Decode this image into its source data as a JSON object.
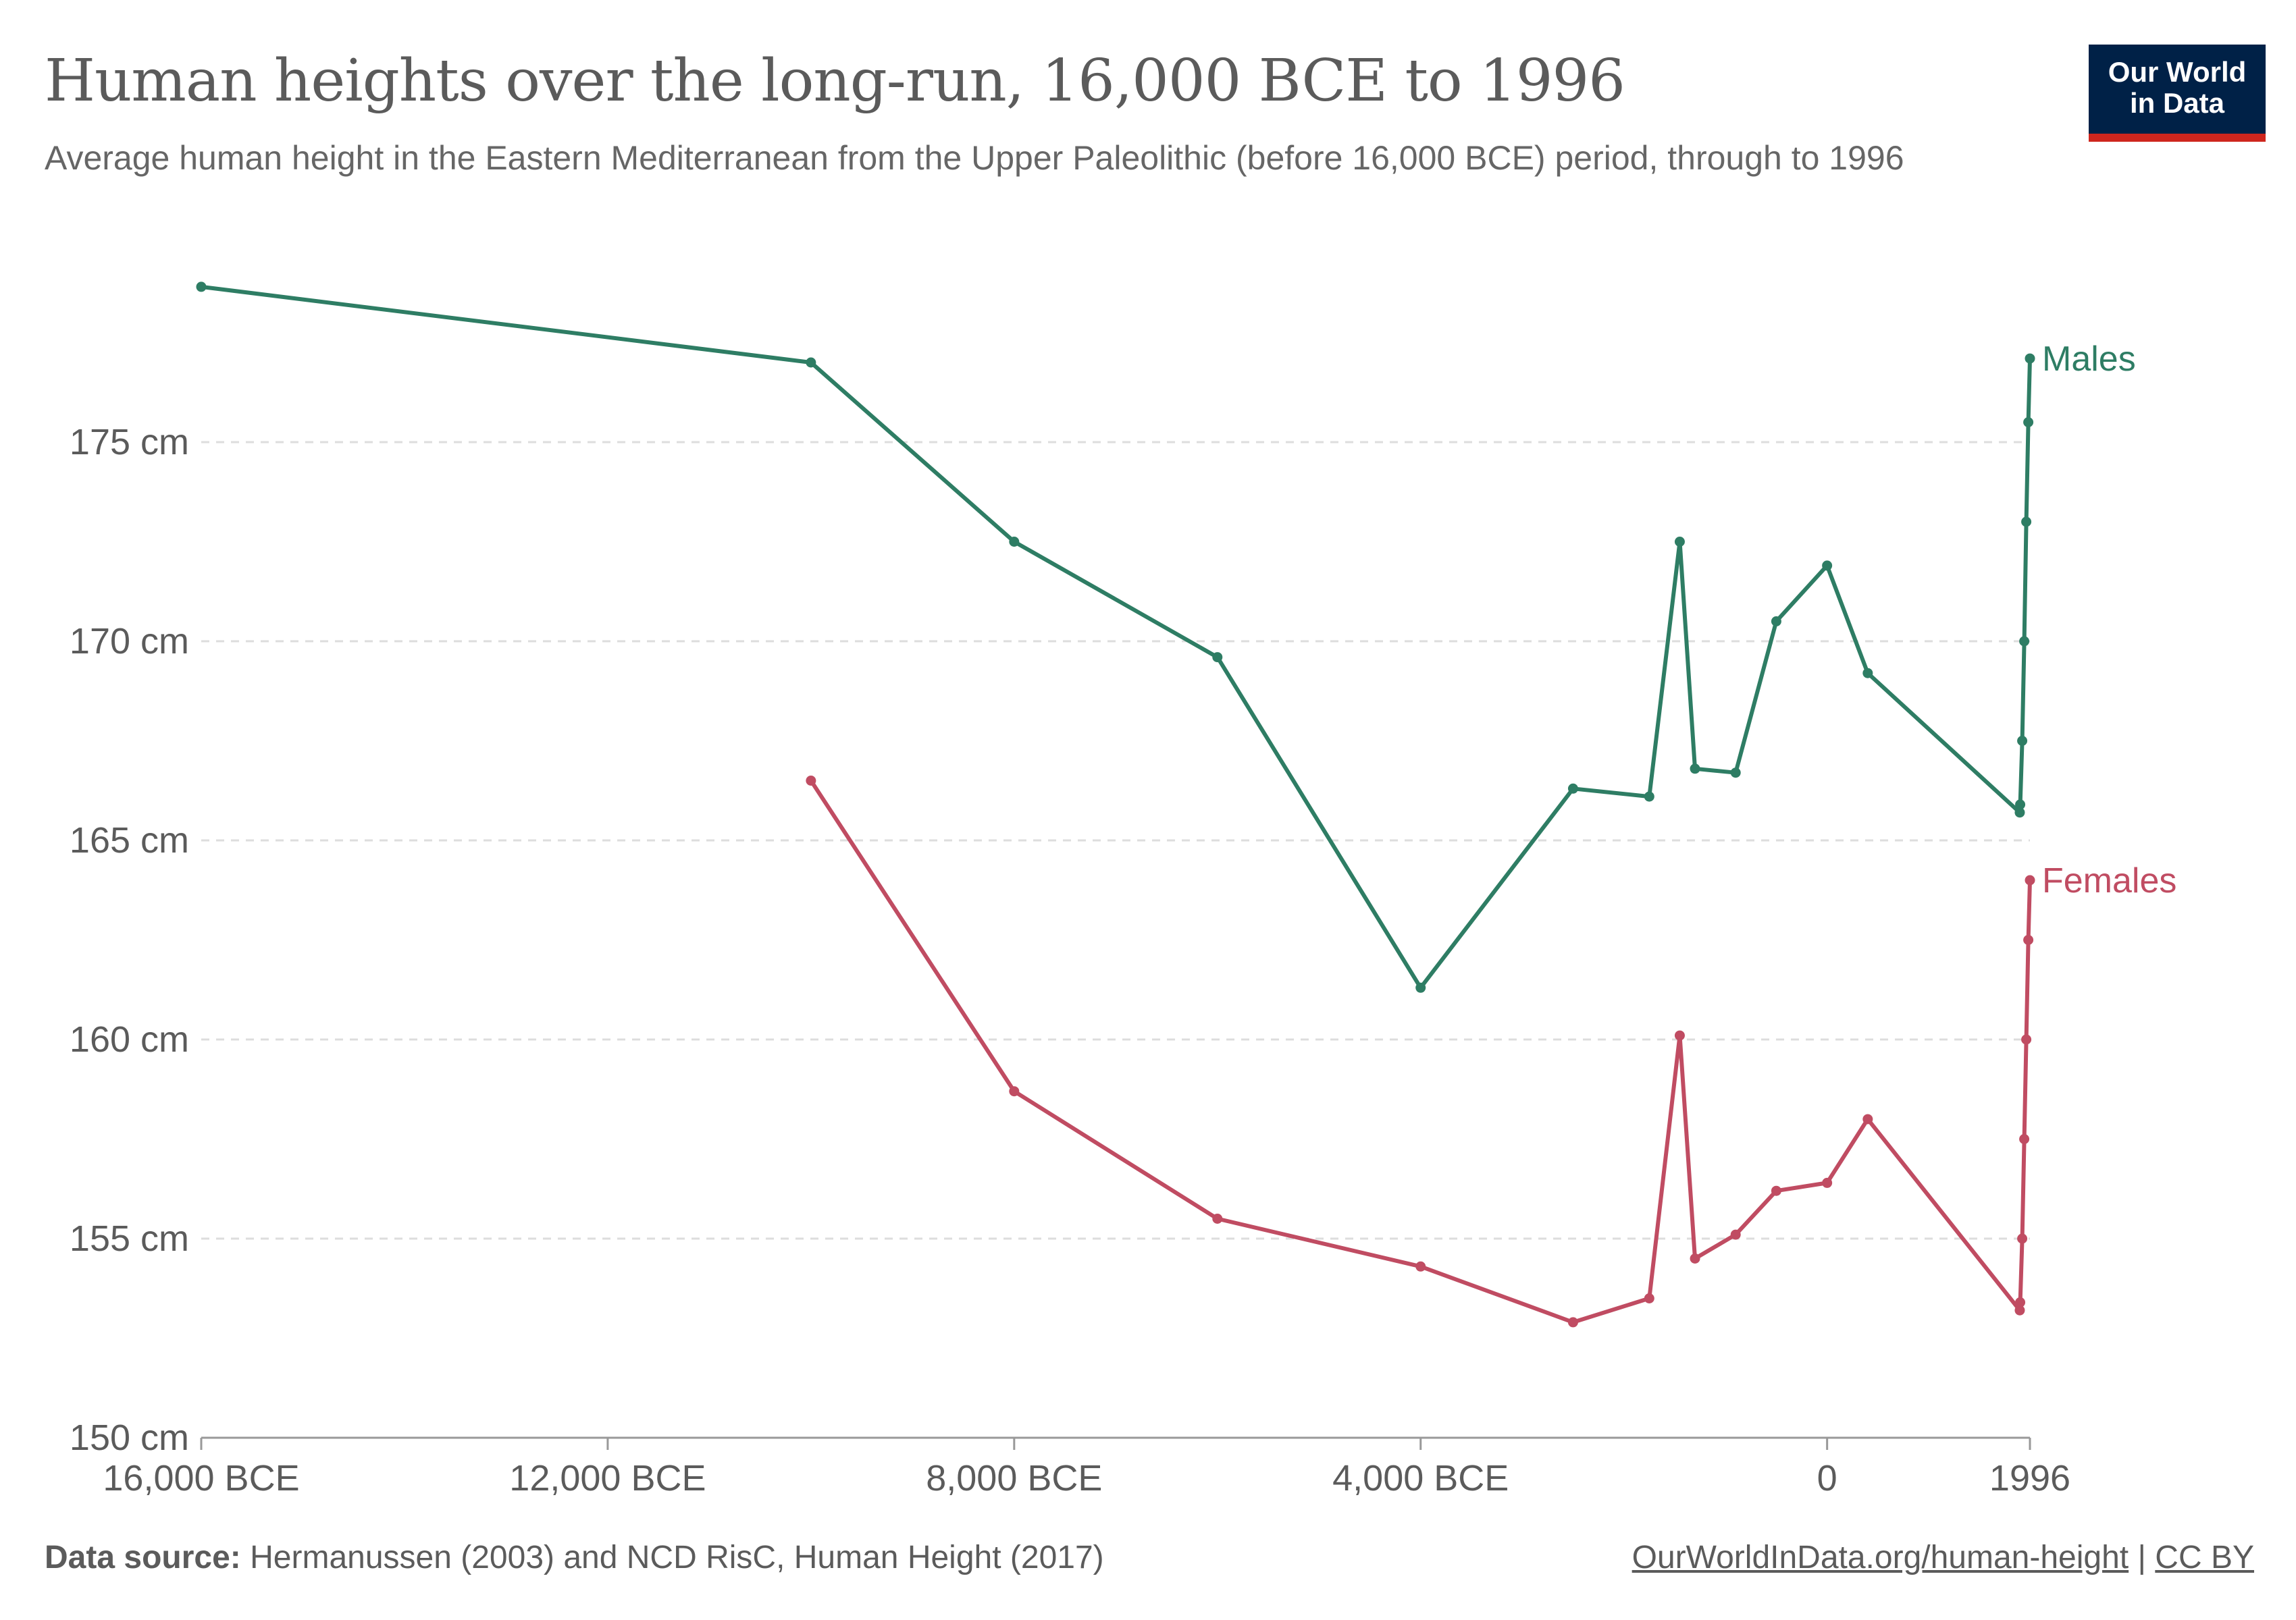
{
  "header": {
    "title": "Human heights over the long-run, 16,000 BCE to 1996",
    "subtitle": "Average human height in the Eastern Mediterranean from the Upper Paleolithic (before 16,000 BCE) period, through to 1996"
  },
  "logo": {
    "line1": "Our World",
    "line2": "in Data"
  },
  "footer": {
    "source_label": "Data source:",
    "source_text": "Hermanussen (2003) and NCD RisC, Human Height (2017)",
    "link_text": "OurWorldInData.org/human-height",
    "separator": "|",
    "license_text": "CC BY"
  },
  "colors": {
    "males": "#2e7d64",
    "females": "#c04c62",
    "grid": "#dddddd",
    "axis_text": "#5b5b5b",
    "logo_bg": "#002147",
    "logo_accent": "#ce261e"
  },
  "chart_data": {
    "type": "line",
    "xlim": [
      -16000,
      1996
    ],
    "ylim": [
      150,
      180
    ],
    "x_ticks": [
      {
        "value": -16000,
        "label": "16,000 BCE"
      },
      {
        "value": -12000,
        "label": "12,000 BCE"
      },
      {
        "value": -8000,
        "label": "8,000 BCE"
      },
      {
        "value": -4000,
        "label": "4,000 BCE"
      },
      {
        "value": 0,
        "label": "0"
      },
      {
        "value": 1996,
        "label": "1996"
      }
    ],
    "y_ticks": [
      {
        "value": 150,
        "label": "150 cm"
      },
      {
        "value": 155,
        "label": "155 cm"
      },
      {
        "value": 160,
        "label": "160 cm"
      },
      {
        "value": 165,
        "label": "165 cm"
      },
      {
        "value": 170,
        "label": "170 cm"
      },
      {
        "value": 175,
        "label": "175 cm"
      }
    ],
    "grid": "horizontal dashed",
    "legend": "inline labels at line ends (right)",
    "series": [
      {
        "name": "Males",
        "points": [
          [
            -16000,
            178.9
          ],
          [
            -10000,
            177.0
          ],
          [
            -8000,
            172.5
          ],
          [
            -6000,
            169.6
          ],
          [
            -4000,
            161.3
          ],
          [
            -2500,
            166.3
          ],
          [
            -1750,
            166.1
          ],
          [
            -1450,
            172.5
          ],
          [
            -1300,
            166.8
          ],
          [
            -900,
            166.7
          ],
          [
            -500,
            170.5
          ],
          [
            0,
            171.9
          ],
          [
            400,
            169.2
          ],
          [
            1896,
            165.7
          ],
          [
            1900,
            165.9
          ],
          [
            1920,
            167.5
          ],
          [
            1940,
            170.0
          ],
          [
            1960,
            173.0
          ],
          [
            1980,
            175.5
          ],
          [
            1996,
            177.1
          ]
        ]
      },
      {
        "name": "Females",
        "points": [
          [
            -10000,
            166.5
          ],
          [
            -8000,
            158.7
          ],
          [
            -6000,
            155.5
          ],
          [
            -4000,
            154.3
          ],
          [
            -2500,
            152.9
          ],
          [
            -1750,
            153.5
          ],
          [
            -1450,
            160.1
          ],
          [
            -1300,
            154.5
          ],
          [
            -900,
            155.1
          ],
          [
            -500,
            156.2
          ],
          [
            0,
            156.4
          ],
          [
            400,
            158.0
          ],
          [
            1896,
            153.2
          ],
          [
            1900,
            153.4
          ],
          [
            1920,
            155.0
          ],
          [
            1940,
            157.5
          ],
          [
            1960,
            160.0
          ],
          [
            1980,
            162.5
          ],
          [
            1996,
            164.0
          ]
        ]
      }
    ]
  }
}
